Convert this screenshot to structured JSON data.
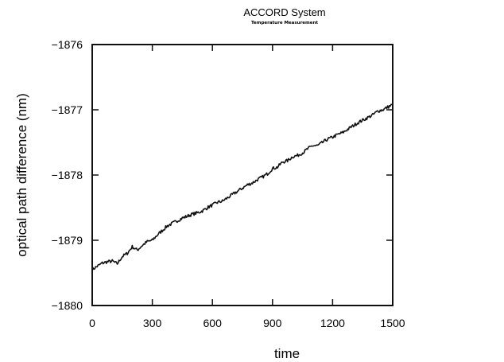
{
  "chart_data": {
    "type": "line",
    "title": "ACCORD System",
    "subtitle": "Temperature Measurement",
    "xlabel": "time",
    "ylabel": "optical path difference (nm)",
    "xlim": [
      0,
      1500
    ],
    "ylim": [
      -1880,
      -1876
    ],
    "xticks": [
      0,
      300,
      600,
      900,
      1200,
      1500
    ],
    "yticks": [
      -1880,
      -1879,
      -1878,
      -1877,
      -1876
    ],
    "xtick_labels": [
      "0",
      "300",
      "600",
      "900",
      "1200",
      "1500"
    ],
    "ytick_labels": [
      "−1880",
      "−1879",
      "−1878",
      "−1877",
      "−1876"
    ],
    "grid": false,
    "line_color": "#111111",
    "x": [
      0,
      25,
      50,
      75,
      100,
      125,
      150,
      175,
      200,
      225,
      250,
      275,
      300,
      325,
      350,
      375,
      400,
      425,
      450,
      475,
      500,
      525,
      550,
      575,
      600,
      625,
      650,
      675,
      700,
      725,
      750,
      775,
      800,
      825,
      850,
      875,
      900,
      925,
      950,
      975,
      1000,
      1025,
      1050,
      1075,
      1100,
      1125,
      1150,
      1175,
      1200,
      1225,
      1250,
      1275,
      1300,
      1325,
      1350,
      1375,
      1400,
      1425,
      1450,
      1475,
      1500
    ],
    "y": [
      -1879.45,
      -1879.4,
      -1879.35,
      -1879.33,
      -1879.32,
      -1879.36,
      -1879.25,
      -1879.2,
      -1879.1,
      -1879.15,
      -1879.08,
      -1879.02,
      -1879.0,
      -1878.92,
      -1878.85,
      -1878.78,
      -1878.74,
      -1878.7,
      -1878.66,
      -1878.63,
      -1878.6,
      -1878.58,
      -1878.55,
      -1878.5,
      -1878.46,
      -1878.42,
      -1878.4,
      -1878.35,
      -1878.3,
      -1878.25,
      -1878.2,
      -1878.15,
      -1878.12,
      -1878.07,
      -1878.03,
      -1877.98,
      -1877.9,
      -1877.88,
      -1877.8,
      -1877.78,
      -1877.72,
      -1877.7,
      -1877.66,
      -1877.6,
      -1877.55,
      -1877.55,
      -1877.5,
      -1877.45,
      -1877.42,
      -1877.38,
      -1877.35,
      -1877.3,
      -1877.25,
      -1877.2,
      -1877.16,
      -1877.12,
      -1877.08,
      -1877.02,
      -1877.0,
      -1876.96,
      -1876.92
    ]
  }
}
